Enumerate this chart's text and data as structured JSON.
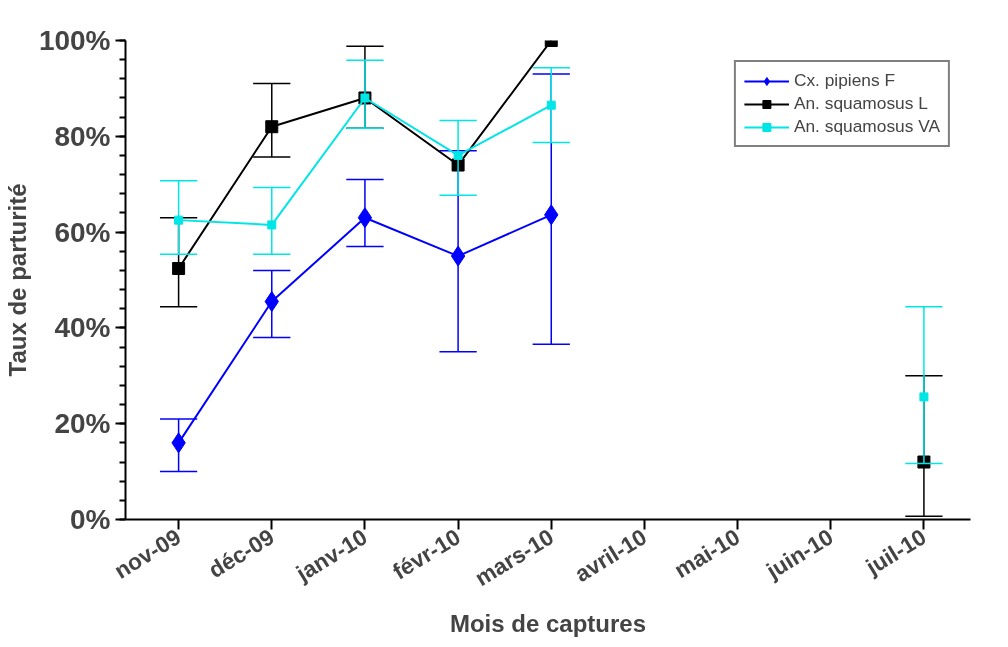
{
  "chart_data": {
    "type": "line",
    "xlabel": "Mois de captures",
    "ylabel": "Taux de parturité",
    "categories": [
      "nov-09",
      "déc-09",
      "janv-10",
      "févr-10",
      "mars-10",
      "avril-10",
      "mai-10",
      "juin-10",
      "juil-10"
    ],
    "ylim": [
      0,
      100
    ],
    "yticks": [
      {
        "value": 0,
        "label": "0%"
      },
      {
        "value": 20,
        "label": "20%"
      },
      {
        "value": 40,
        "label": "40%"
      },
      {
        "value": 60,
        "label": "60%"
      },
      {
        "value": 80,
        "label": "80%"
      },
      {
        "value": 100,
        "label": "100%"
      }
    ],
    "grid": false,
    "legend": "top right",
    "series": [
      {
        "name": "Cx. pipiens F",
        "color": "#0000ff",
        "marker": "diamond",
        "values": [
          16,
          45.5,
          63,
          55,
          63.6,
          null,
          null,
          null,
          null
        ],
        "errors": [
          [
            10,
            21
          ],
          [
            38,
            52
          ],
          [
            57,
            71
          ],
          [
            35,
            77
          ],
          [
            36.6,
            93
          ],
          null,
          null,
          null,
          null
        ]
      },
      {
        "name": "An. squamosus L",
        "color": "#000000",
        "marker": "square",
        "values": [
          52.4,
          82,
          88,
          74,
          100,
          null,
          null,
          null,
          12
        ],
        "errors": [
          [
            44.4,
            63
          ],
          [
            75.7,
            91
          ],
          [
            81.7,
            98.8
          ],
          null,
          null,
          null,
          null,
          null,
          [
            0.7,
            30
          ]
        ]
      },
      {
        "name": "An. squamosus VA",
        "color": "#00e5e5",
        "marker": "square",
        "values": [
          62.5,
          61.5,
          88,
          76,
          86.5,
          null,
          null,
          null,
          25.6
        ],
        "errors": [
          [
            55.4,
            70.7
          ],
          [
            55.4,
            69.3
          ],
          [
            81.7,
            95.9
          ],
          [
            67.7,
            83.3
          ],
          [
            78.7,
            94.3
          ],
          null,
          null,
          null,
          [
            11.7,
            44.4
          ]
        ]
      }
    ]
  }
}
